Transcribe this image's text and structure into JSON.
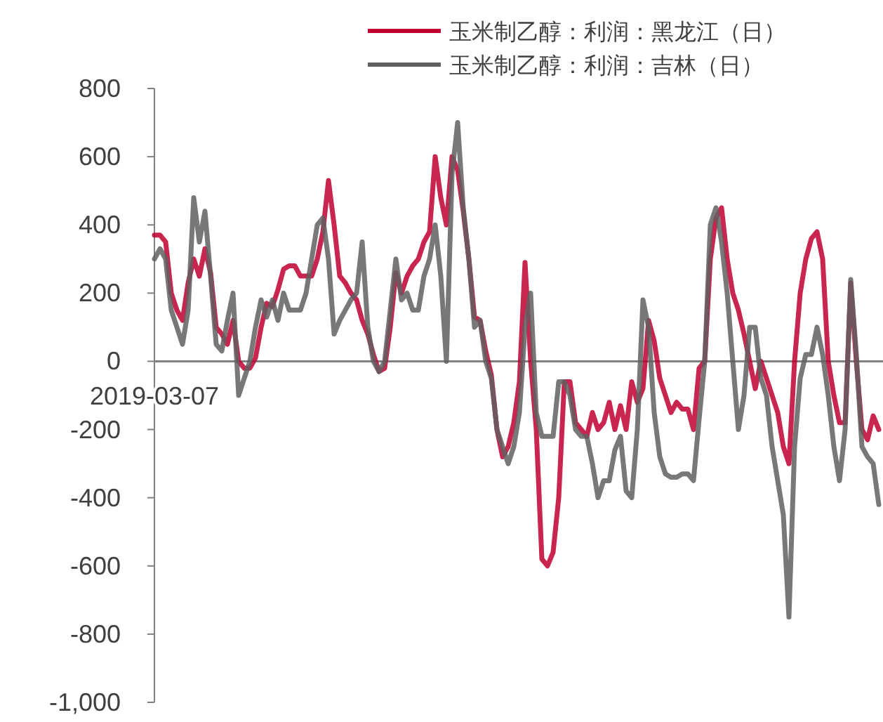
{
  "chart_data": {
    "type": "line",
    "categories": [
      "2019-03-07",
      null,
      null,
      null,
      null,
      null,
      null,
      null,
      null,
      null,
      null,
      null,
      null,
      null,
      null,
      null,
      null,
      null,
      null,
      null,
      null,
      null,
      null,
      null,
      null,
      null,
      null,
      null,
      null,
      null,
      null,
      null,
      null,
      null,
      null,
      null,
      null,
      null,
      null,
      null,
      null,
      null,
      null,
      null,
      null,
      null,
      null,
      null,
      null,
      null,
      null,
      null,
      null,
      null,
      null,
      null,
      null,
      null,
      null,
      null,
      null,
      null,
      null,
      null,
      null,
      null,
      null,
      null,
      null,
      null,
      null,
      null,
      null,
      null,
      null,
      null,
      null,
      null,
      null,
      null,
      null,
      null,
      null,
      null,
      null,
      null,
      null,
      null,
      null,
      null,
      null,
      null,
      null,
      null,
      null,
      null,
      null,
      null,
      null,
      null,
      null,
      null,
      null,
      null,
      null,
      null,
      null,
      null,
      null,
      null,
      null,
      null,
      null,
      null,
      null,
      null,
      null,
      null,
      null,
      null,
      null,
      null,
      null,
      null,
      null,
      null,
      null,
      null,
      null,
      null
    ],
    "ylim": [
      -1000,
      800
    ],
    "yticks": [
      {
        "value": -1000,
        "label": "-1,000"
      },
      -800,
      -600,
      -400,
      -200,
      0,
      200,
      400,
      600,
      800
    ],
    "legend": "top right",
    "series": [
      {
        "name": "玉米制乙醇：利润：黑龙江（日）",
        "color": "#c00030",
        "values": [
          370,
          370,
          350,
          200,
          150,
          120,
          230,
          300,
          250,
          330,
          260,
          100,
          80,
          50,
          120,
          0,
          -20,
          -20,
          10,
          100,
          170,
          160,
          210,
          270,
          280,
          280,
          250,
          250,
          250,
          300,
          380,
          530,
          400,
          250,
          230,
          200,
          180,
          120,
          80,
          20,
          -30,
          -20,
          100,
          260,
          200,
          250,
          280,
          300,
          350,
          380,
          600,
          480,
          400,
          600,
          560,
          440,
          300,
          130,
          120,
          30,
          -40,
          -200,
          -280,
          -250,
          -180,
          -60,
          290,
          0,
          -200,
          -580,
          -600,
          -560,
          -400,
          -60,
          -60,
          -180,
          -200,
          -220,
          -150,
          -200,
          -180,
          -120,
          -200,
          -130,
          -200,
          -60,
          -120,
          -80,
          120,
          60,
          -50,
          -100,
          -150,
          -120,
          -140,
          -140,
          -200,
          -20,
          0,
          300,
          420,
          450,
          300,
          200,
          150,
          80,
          0,
          -80,
          0,
          -50,
          -100,
          -150,
          -250,
          -300,
          0,
          200,
          300,
          360,
          380,
          300,
          0,
          -100,
          -180,
          -180,
          230,
          0,
          -200,
          -230,
          -160,
          -200
        ]
      },
      {
        "name": "玉米制乙醇：利润：吉林（日）",
        "color": "#606060",
        "values": [
          300,
          330,
          300,
          150,
          100,
          50,
          150,
          480,
          350,
          440,
          250,
          50,
          30,
          120,
          200,
          -100,
          -50,
          0,
          100,
          180,
          130,
          180,
          120,
          200,
          150,
          150,
          150,
          200,
          300,
          400,
          420,
          300,
          80,
          120,
          150,
          180,
          200,
          350,
          100,
          0,
          -30,
          0,
          150,
          300,
          180,
          200,
          150,
          150,
          250,
          300,
          400,
          250,
          0,
          550,
          700,
          450,
          300,
          100,
          120,
          0,
          -50,
          -200,
          -250,
          -300,
          -250,
          -150,
          100,
          200,
          -150,
          -220,
          -220,
          -220,
          -60,
          -60,
          -100,
          -200,
          -220,
          -220,
          -300,
          -400,
          -350,
          -350,
          -260,
          -220,
          -380,
          -400,
          -200,
          180,
          100,
          -150,
          -280,
          -330,
          -340,
          -340,
          -330,
          -330,
          -350,
          -170,
          0,
          400,
          450,
          350,
          200,
          0,
          -200,
          -100,
          100,
          100,
          -50,
          -100,
          -250,
          -350,
          -450,
          -750,
          -250,
          -50,
          20,
          20,
          100,
          20,
          -100,
          -250,
          -350,
          -200,
          240,
          20,
          -250,
          -280,
          -300,
          -420
        ]
      }
    ]
  }
}
